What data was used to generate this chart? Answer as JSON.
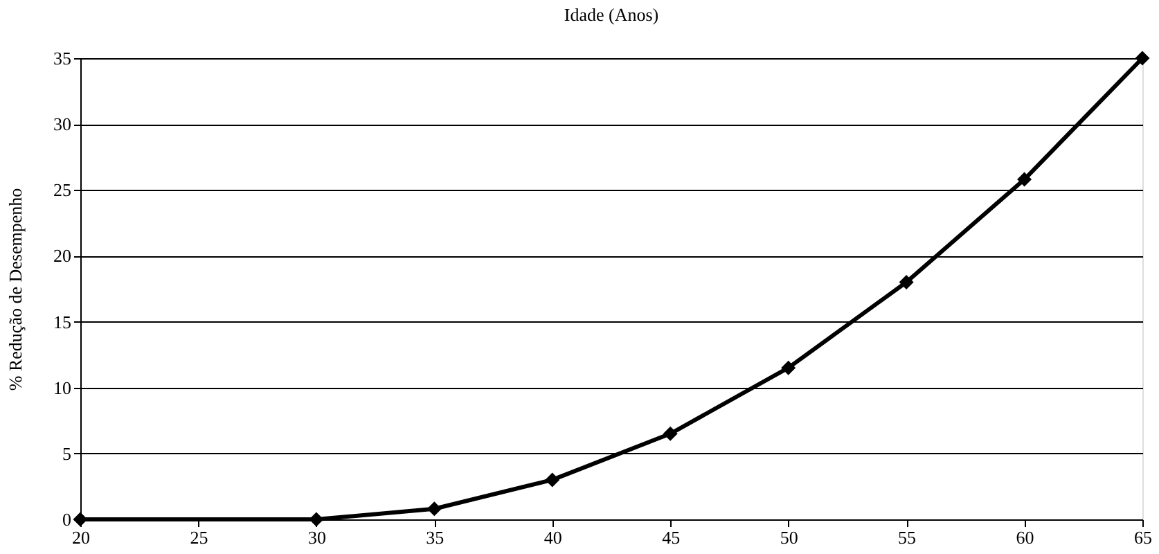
{
  "chart_data": {
    "type": "line",
    "title": "Idade (Anos)",
    "ylabel": "% Redução de Desempenho",
    "x": [
      20,
      30,
      35,
      40,
      45,
      50,
      55,
      60,
      65
    ],
    "series": [
      {
        "color": "#000000",
        "values": [
          0,
          0,
          0.8,
          3,
          6.5,
          11.5,
          18,
          25.8,
          35
        ]
      }
    ],
    "xlim": [
      20,
      65
    ],
    "xticks": [
      20,
      25,
      30,
      35,
      40,
      45,
      50,
      55,
      60,
      65
    ],
    "ylim": [
      0,
      35
    ],
    "yticks": [
      0,
      5,
      10,
      15,
      20,
      25,
      30,
      35
    ],
    "grid": "y",
    "marker": "diamond",
    "line_style": "solid"
  }
}
